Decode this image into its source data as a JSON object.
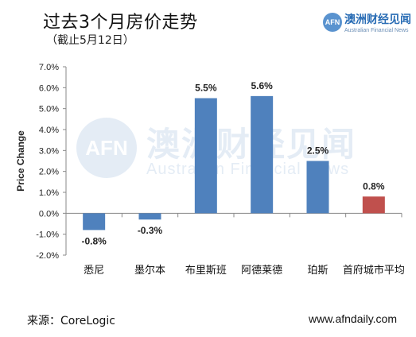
{
  "header": {
    "title": "过去3个月房价走势",
    "subtitle": "（截止5月12日）"
  },
  "logo": {
    "badge": "AFN",
    "cn": "澳洲财经见闻",
    "en": "Australian Financial News"
  },
  "watermark": {
    "badge": "AFN",
    "cn": "澳洲财经见闻",
    "en": "Australian Financial News"
  },
  "footer": {
    "source": "来源：CoreLogic",
    "site": "www.afndaily.com"
  },
  "colors": {
    "bar_primary": "#4f81bd",
    "bar_highlight": "#c0504d",
    "axis": "#888888",
    "watermark": "#5d8fc6"
  },
  "chart_data": {
    "type": "bar",
    "title": "过去3个月房价走势",
    "subtitle": "（截止5月12日）",
    "xlabel": "",
    "ylabel": "Price Change",
    "categories": [
      "悉尼",
      "墨尔本",
      "布里斯班",
      "阿德莱德",
      "珀斯",
      "首府城市平均"
    ],
    "values": [
      -0.8,
      -0.3,
      5.5,
      5.6,
      2.5,
      0.8
    ],
    "value_labels": [
      "-0.8%",
      "-0.3%",
      "5.5%",
      "5.6%",
      "2.5%",
      "0.8%"
    ],
    "highlight_index": 5,
    "ylim": [
      -2.0,
      7.0
    ],
    "yticks": [
      -2.0,
      -1.0,
      0.0,
      1.0,
      2.0,
      3.0,
      4.0,
      5.0,
      6.0,
      7.0
    ],
    "ytick_labels": [
      "-2.0%",
      "-1.0%",
      "0.0%",
      "1.0%",
      "2.0%",
      "3.0%",
      "4.0%",
      "5.0%",
      "6.0%",
      "7.0%"
    ],
    "grid": false,
    "legend": "none"
  }
}
